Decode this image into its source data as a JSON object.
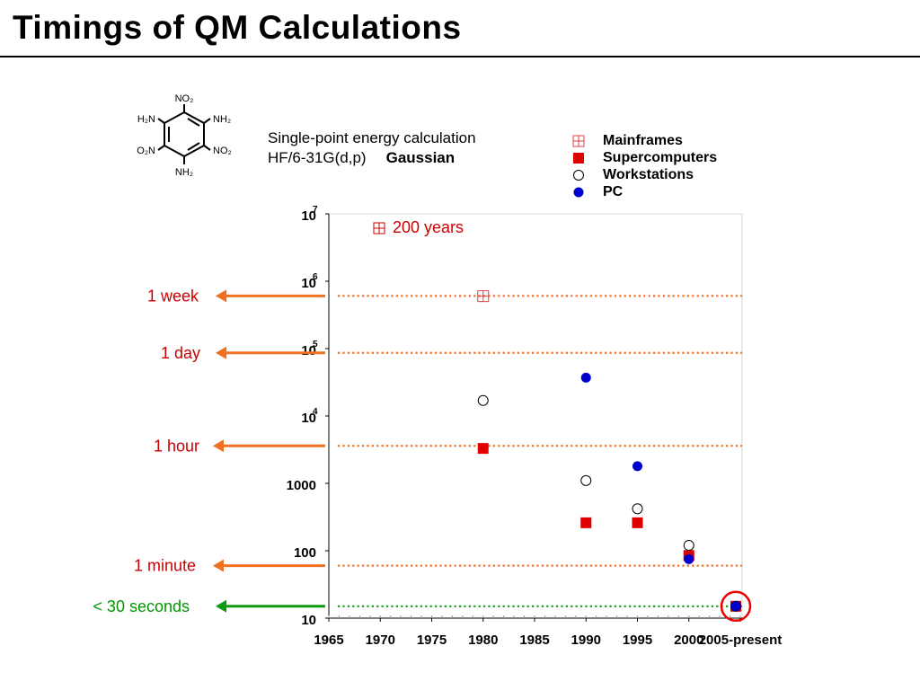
{
  "page": {
    "title": "Timings of QM Calculations"
  },
  "molecule": {
    "top": "NO₂",
    "upper_left": "H₂N",
    "upper_right": "NH₂",
    "lower_left": "O₂N",
    "lower_right": "NO₂",
    "bottom": "NH₂"
  },
  "caption": {
    "line1": "Single-point energy calculation",
    "method": "HF/6-31G(d,p)",
    "program": "Gaussian"
  },
  "legend": [
    {
      "label": "Mainframes",
      "marker": "square-cross-open",
      "color": "#e04040"
    },
    {
      "label": "Supercomputers",
      "marker": "square-filled",
      "color": "#e00000"
    },
    {
      "label": "Workstations",
      "marker": "circle-open",
      "color": "#000000"
    },
    {
      "label": "PC",
      "marker": "circle-filled",
      "color": "#0000cc"
    }
  ],
  "chart_data": {
    "type": "scatter",
    "y_scale": "log",
    "ylim": [
      10,
      10000000
    ],
    "y_ticks": [
      {
        "value": 10,
        "label": "10"
      },
      {
        "value": 100,
        "label": "100"
      },
      {
        "value": 1000,
        "label": "1000"
      },
      {
        "value": 10000,
        "label": "10",
        "sup": "4"
      },
      {
        "value": 100000,
        "label": "10",
        "sup": "5"
      },
      {
        "value": 1000000,
        "label": "10",
        "sup": "6"
      },
      {
        "value": 10000000,
        "label": "10",
        "sup": "7"
      }
    ],
    "x_ticks": [
      "1965",
      "1970",
      "1975",
      "1980",
      "1985",
      "1990",
      "1995",
      "2000",
      "2005-present"
    ],
    "series": [
      {
        "name": "Mainframes",
        "points": [
          {
            "x": "1980",
            "y": 600000
          }
        ]
      },
      {
        "name": "Supercomputers",
        "points": [
          {
            "x": "1980",
            "y": 3300
          },
          {
            "x": "1990",
            "y": 260
          },
          {
            "x": "1995",
            "y": 260
          },
          {
            "x": "2000",
            "y": 85
          },
          {
            "x": "2005-present",
            "y": 15
          }
        ]
      },
      {
        "name": "Workstations",
        "points": [
          {
            "x": "1980",
            "y": 17000
          },
          {
            "x": "1990",
            "y": 1100
          },
          {
            "x": "1995",
            "y": 420
          },
          {
            "x": "2000",
            "y": 120
          },
          {
            "x": "2005-present",
            "y": 15
          }
        ]
      },
      {
        "name": "PC",
        "points": [
          {
            "x": "1990",
            "y": 37000
          },
          {
            "x": "1995",
            "y": 1800
          },
          {
            "x": "2000",
            "y": 75
          },
          {
            "x": "2005-present",
            "y": 15
          }
        ]
      }
    ],
    "reference_lines": [
      {
        "label": "1 week",
        "y": 604800,
        "color": "#f07020",
        "label_color": "#cc0000"
      },
      {
        "label": "1 day",
        "y": 86400,
        "color": "#f07020",
        "label_color": "#cc0000"
      },
      {
        "label": "1 hour",
        "y": 3600,
        "color": "#f07020",
        "label_color": "#cc0000"
      },
      {
        "label": "1 minute",
        "y": 60,
        "color": "#f07020",
        "label_color": "#cc0000"
      },
      {
        "label": "< 30 seconds",
        "y": 15,
        "color": "#119911",
        "label_color": "#009900"
      }
    ],
    "annotations": [
      {
        "text": "200 years",
        "marker": "square-cross-open",
        "color": "#cc0000"
      }
    ],
    "highlight": {
      "x": "2005-present",
      "y": 15,
      "shape": "circle",
      "color": "#ee0000"
    }
  }
}
